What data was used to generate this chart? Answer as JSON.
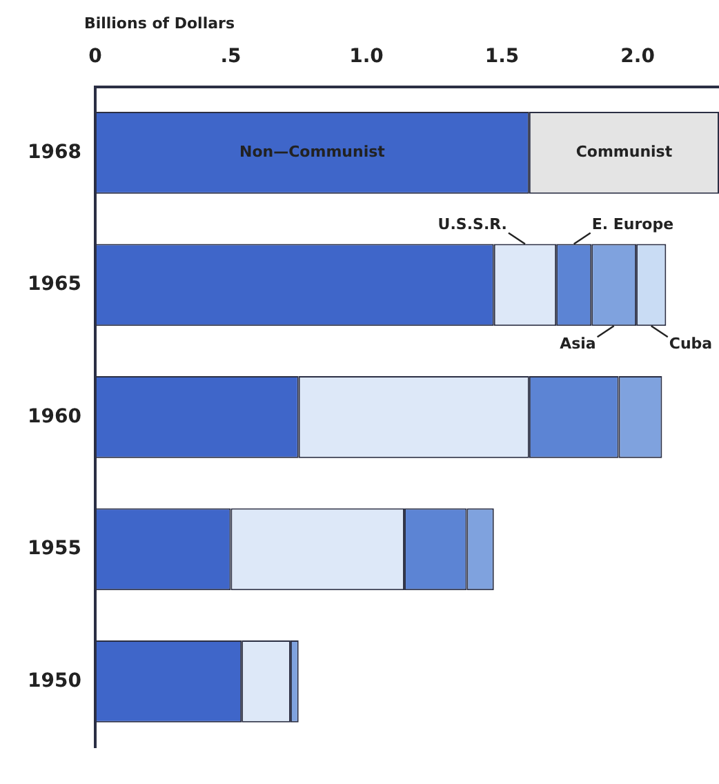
{
  "chart_data": {
    "type": "bar",
    "orientation": "horizontal",
    "stacked": true,
    "xlabel": "Billions of Dollars",
    "categories": [
      "1968",
      "1965",
      "1960",
      "1955",
      "1950"
    ],
    "xlim": [
      0,
      2.3
    ],
    "xticks": [
      0,
      {
        "value": 0.5,
        "label": ".5"
      },
      {
        "value": 1,
        "label": "1.0"
      },
      1.5,
      {
        "value": 2,
        "label": "2.0"
      }
    ],
    "grid": false,
    "legend": false,
    "series": [
      {
        "name": "Non—Communist",
        "color": "#3f66c9",
        "values": [
          1.6,
          1.47,
          0.75,
          0.5,
          0.54
        ]
      },
      {
        "name": "U.S.S.R.",
        "color": "#dde8f8",
        "values": [
          null,
          0.23,
          0.85,
          0.64,
          0.18
        ]
      },
      {
        "name": "E. Europe",
        "color": "#5c84d4",
        "values": [
          null,
          0.13,
          0.33,
          0.23,
          null
        ]
      },
      {
        "name": "Asia",
        "color": "#7fa2de",
        "values": [
          null,
          0.165,
          0.16,
          0.1,
          0.03
        ]
      },
      {
        "name": "Cuba",
        "color": "#c9dcf4",
        "values": [
          null,
          0.11,
          null,
          null,
          null
        ]
      },
      {
        "name": "Communist",
        "color": "#e4e4e4",
        "values": [
          0.7,
          null,
          null,
          null,
          null
        ]
      }
    ]
  }
}
